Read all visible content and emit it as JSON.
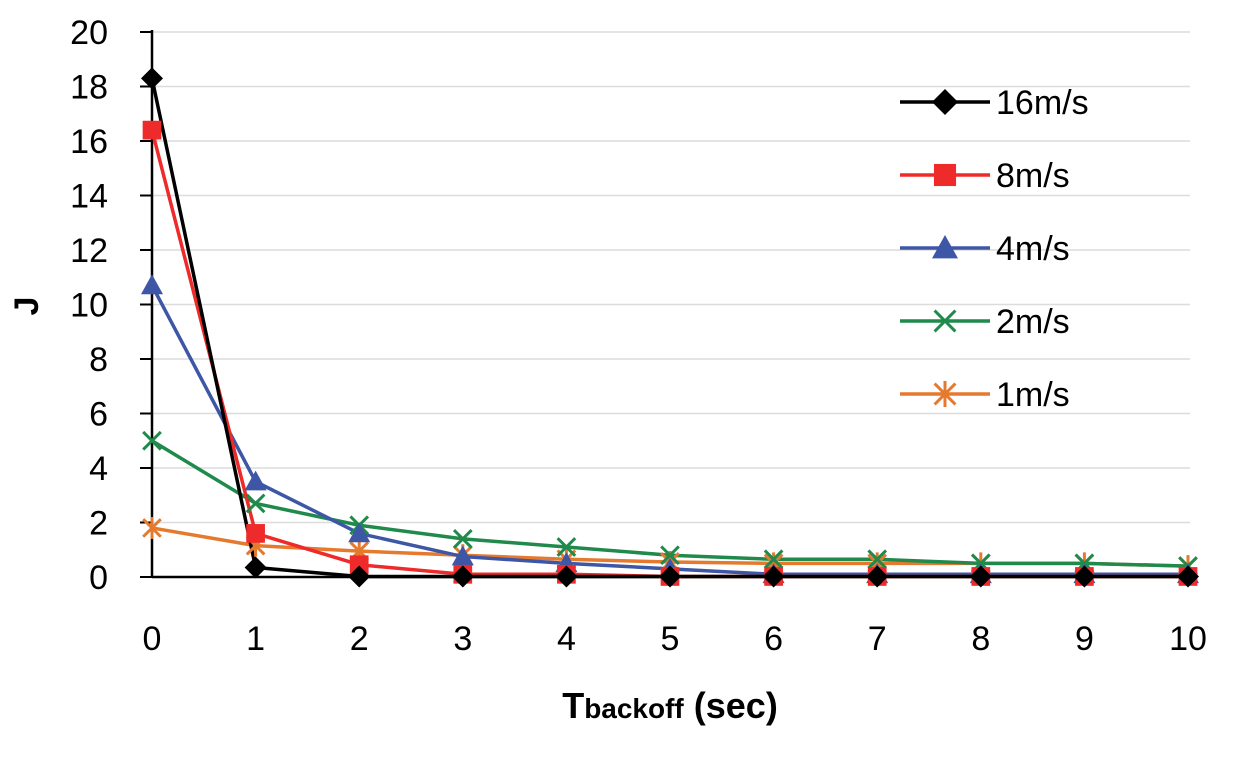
{
  "chart_data": {
    "type": "line",
    "title": "",
    "xlabel_main": "T",
    "xlabel_sub": "backoff",
    "xlabel_unit": " (sec)",
    "ylabel": "J",
    "x": [
      0,
      1,
      2,
      3,
      4,
      5,
      6,
      7,
      8,
      9,
      10
    ],
    "xlim": [
      0,
      10
    ],
    "ylim": [
      0,
      20
    ],
    "yticks": [
      0,
      2,
      4,
      6,
      8,
      10,
      12,
      14,
      16,
      18,
      20
    ],
    "grid": "horizontal",
    "legend_position": "top-right",
    "series": [
      {
        "name": "16m/s",
        "color": "#000000",
        "marker": "diamond",
        "values": [
          18.3,
          0.35,
          0.02,
          0.02,
          0.02,
          0.02,
          0.02,
          0.02,
          0.02,
          0.02,
          0.02
        ]
      },
      {
        "name": "8m/s",
        "color": "#ee2a2a",
        "marker": "square",
        "values": [
          16.4,
          1.6,
          0.45,
          0.1,
          0.1,
          0.02,
          0.02,
          0.02,
          0.02,
          0.02,
          0.02
        ]
      },
      {
        "name": "4m/s",
        "color": "#3d56a6",
        "marker": "triangle",
        "values": [
          10.7,
          3.5,
          1.6,
          0.75,
          0.5,
          0.3,
          0.1,
          0.1,
          0.1,
          0.1,
          0.1
        ]
      },
      {
        "name": "2m/s",
        "color": "#1f8a4c",
        "marker": "x",
        "values": [
          5.0,
          2.7,
          1.9,
          1.4,
          1.1,
          0.8,
          0.65,
          0.65,
          0.5,
          0.5,
          0.4
        ]
      },
      {
        "name": "1m/s",
        "color": "#e57a2e",
        "marker": "asterisk",
        "values": [
          1.8,
          1.15,
          0.95,
          0.8,
          0.65,
          0.55,
          0.5,
          0.5,
          0.5,
          0.5,
          0.4
        ]
      }
    ]
  }
}
